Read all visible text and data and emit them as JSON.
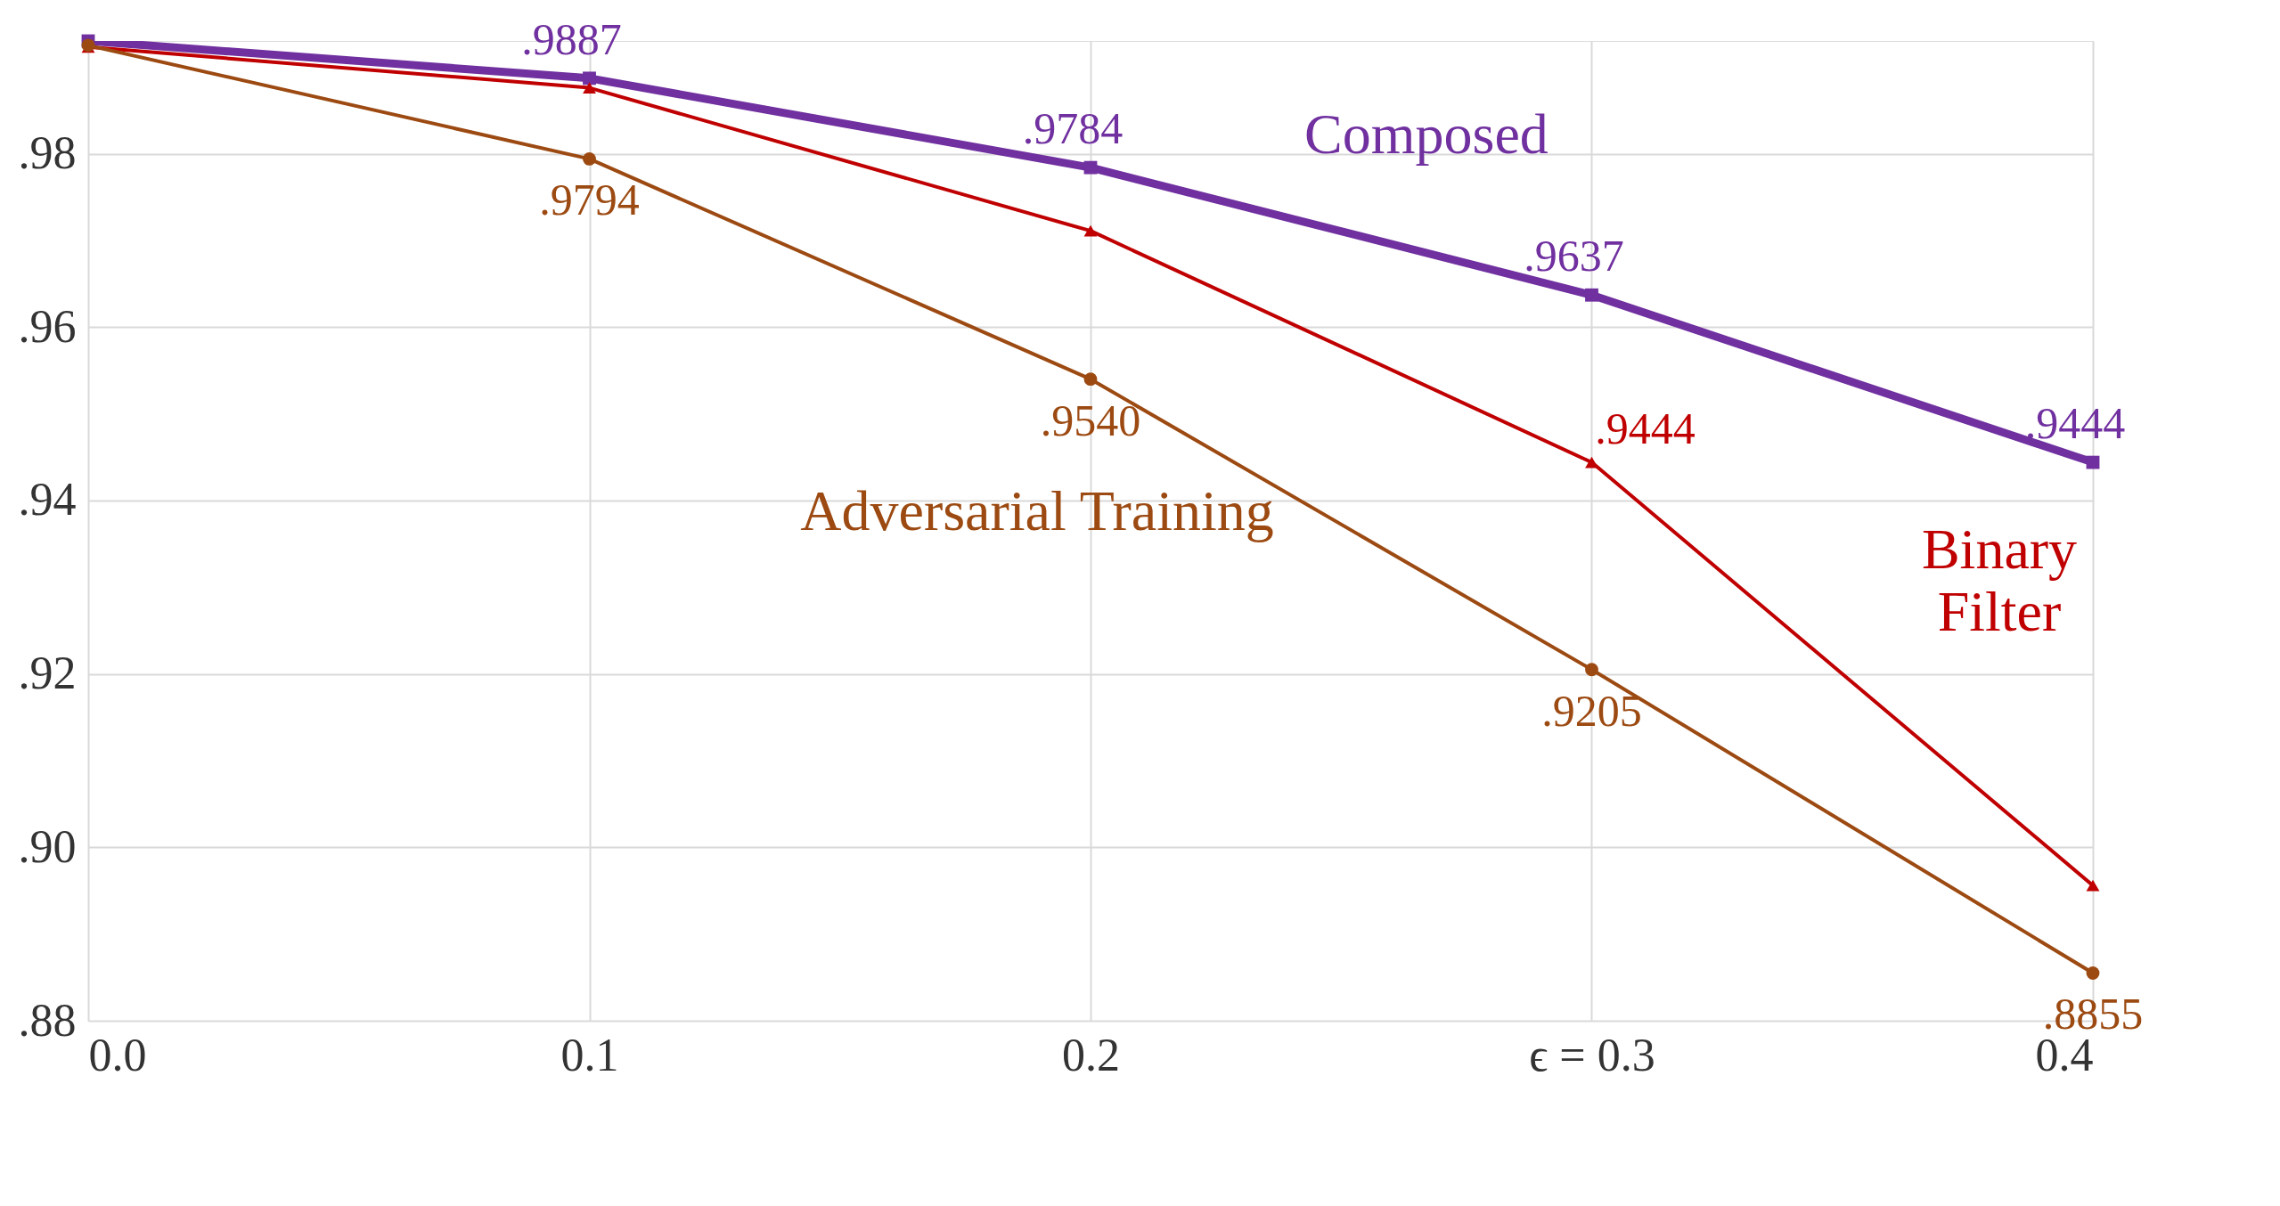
{
  "chart_data": {
    "type": "line",
    "x": [
      0.0,
      0.1,
      0.2,
      0.3,
      0.4
    ],
    "xlim": [
      0.0,
      0.4
    ],
    "xticks": [
      {
        "value": 0.0,
        "label": "0.0"
      },
      {
        "value": 0.1,
        "label": "0.1"
      },
      {
        "value": 0.2,
        "label": "0.2"
      },
      {
        "value": 0.3,
        "label": "ϵ = 0.3"
      },
      {
        "value": 0.4,
        "label": "0.4"
      }
    ],
    "ylim": [
      0.88,
      0.993
    ],
    "yticks": [
      {
        "value": 0.88,
        "label": ".88"
      },
      {
        "value": 0.9,
        "label": ".90"
      },
      {
        "value": 0.92,
        "label": ".92"
      },
      {
        "value": 0.94,
        "label": ".94"
      },
      {
        "value": 0.96,
        "label": ".96"
      },
      {
        "value": 0.98,
        "label": ".98"
      }
    ],
    "grid": true,
    "series": [
      {
        "name": "Composed",
        "color": "#7030a0",
        "marker": "square",
        "values": [
          0.993,
          0.9887,
          0.9784,
          0.9637,
          0.9444
        ],
        "value_labels": [
          null,
          ".9887",
          ".9784",
          ".9637",
          ".9444"
        ]
      },
      {
        "name": "Binary Filter",
        "color": "#c00000",
        "marker": "triangle",
        "values": [
          0.9923,
          0.9876,
          0.9711,
          0.9444,
          0.8956
        ],
        "value_labels": [
          null,
          null,
          null,
          ".9444",
          null
        ]
      },
      {
        "name": "Adversarial Training",
        "color": "#9c4a12",
        "marker": "circle",
        "values": [
          0.9925,
          0.9794,
          0.954,
          0.9205,
          0.8855
        ],
        "value_labels": [
          null,
          ".9794",
          ".9540",
          ".9205",
          ".8855"
        ]
      }
    ]
  }
}
